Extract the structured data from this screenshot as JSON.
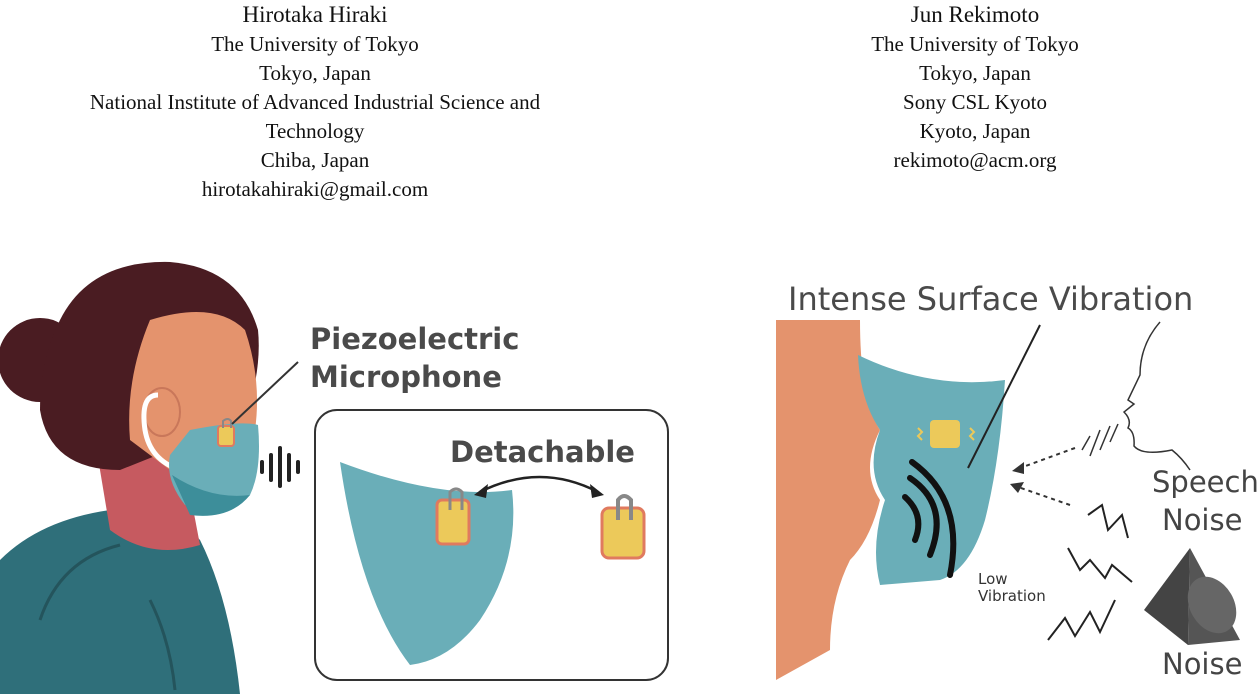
{
  "authors": [
    {
      "name": "Hirotaka Hiraki",
      "affiliation_lines": [
        "The University of Tokyo",
        "Tokyo, Japan",
        "National Institute of Advanced Industrial Science and",
        "Technology",
        "Chiba, Japan"
      ],
      "email": "hirotakahiraki@gmail.com"
    },
    {
      "name": "Jun Rekimoto",
      "affiliation_lines": [
        "The University of Tokyo",
        "Tokyo, Japan",
        "Sony CSL Kyoto",
        "Kyoto, Japan"
      ],
      "email": "rekimoto@acm.org"
    }
  ],
  "figure_left": {
    "microphone_label": [
      "Piezoelectric",
      "Microphone"
    ],
    "detachable_label": "Detachable"
  },
  "figure_right": {
    "title": "Intense Surface Vibration",
    "low_vibration_label": [
      "Low",
      "Vibration"
    ],
    "speech_noise_label": [
      "Speech",
      "Noise"
    ],
    "noise_label": "Noise"
  },
  "colors": {
    "mask_teal": "#6aaeb8",
    "mask_dark": "#3d8e9a",
    "skin": "#e4936d",
    "hair": "#4a1c22",
    "sensor_yellow": "#ecc95a",
    "sensor_border": "#e07a5f",
    "shirt": "#2f6f7a",
    "speaker_gray": "#555555"
  }
}
